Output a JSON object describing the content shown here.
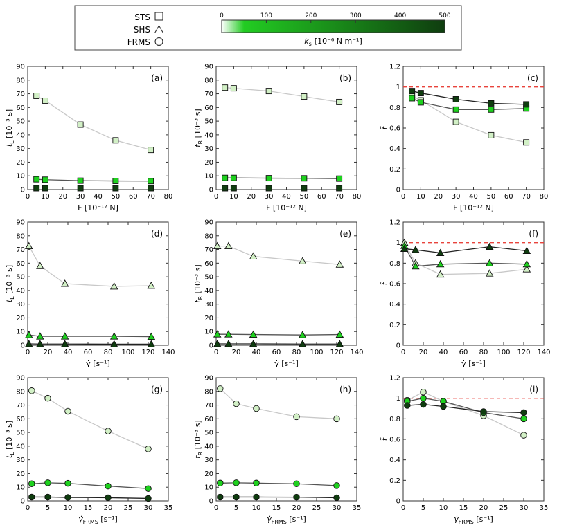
{
  "figure": {
    "legend": {
      "markers": [
        {
          "label": "STS",
          "shape": "square"
        },
        {
          "label": "SHS",
          "shape": "triangle"
        },
        {
          "label": "FRMS",
          "shape": "circle"
        }
      ],
      "colorbar": {
        "ticks": [
          "0",
          "100",
          "200",
          "300",
          "400",
          "500"
        ],
        "range": [
          0,
          500
        ],
        "label": "k",
        "label_sub": "s",
        "label_unit": "[10⁻⁶ N m⁻¹]",
        "colors": [
          "#ffffff",
          "#0f3d0f"
        ]
      }
    },
    "series_colors": {
      "low": {
        "fill": "#d2f0c6",
        "line": "#c8c8c8"
      },
      "mid": {
        "fill": "#1ed11e",
        "line": "#555555"
      },
      "high": {
        "fill": "#0f3d0f",
        "line": "#222222"
      }
    },
    "refline_color": "#e8443c"
  },
  "chart_data": [
    {
      "id": "a",
      "panel_label": "(a)",
      "type": "line",
      "marker": "square",
      "xlabel": "F [10⁻¹² N]",
      "ylabel": "t_L [10⁻³ s]",
      "xlim": [
        0,
        80
      ],
      "ylim": [
        0,
        90
      ],
      "xticks": [
        0,
        10,
        20,
        30,
        40,
        50,
        60,
        70,
        80
      ],
      "yticks": [
        0,
        10,
        20,
        30,
        40,
        50,
        60,
        70,
        80,
        90
      ],
      "x": [
        5,
        10,
        30,
        50,
        70
      ],
      "series": [
        {
          "level": "low",
          "values": [
            68.5,
            65,
            47.5,
            36,
            29
          ]
        },
        {
          "level": "mid",
          "values": [
            7.5,
            7.2,
            6.5,
            6.3,
            6.2
          ]
        },
        {
          "level": "high",
          "values": [
            1,
            1,
            1,
            1,
            1
          ]
        }
      ],
      "series_lines": [
        true,
        true,
        false
      ]
    },
    {
      "id": "b",
      "panel_label": "(b)",
      "type": "line",
      "marker": "square",
      "xlabel": "F [10⁻¹² N]",
      "ylabel": "t_R [10⁻³ s]",
      "xlim": [
        0,
        80
      ],
      "ylim": [
        0,
        90
      ],
      "xticks": [
        0,
        10,
        20,
        30,
        40,
        50,
        60,
        70,
        80
      ],
      "yticks": [
        0,
        10,
        20,
        30,
        40,
        50,
        60,
        70,
        80,
        90
      ],
      "x": [
        5,
        10,
        30,
        50,
        70
      ],
      "series": [
        {
          "level": "low",
          "values": [
            74.5,
            74,
            72,
            68,
            64
          ]
        },
        {
          "level": "mid",
          "values": [
            8.5,
            8.5,
            8.3,
            8.2,
            8
          ]
        },
        {
          "level": "high",
          "values": [
            1,
            1,
            1,
            1,
            1
          ]
        }
      ],
      "series_lines": [
        true,
        true,
        false
      ]
    },
    {
      "id": "c",
      "panel_label": "(c)",
      "type": "line",
      "marker": "square",
      "xlabel": "F [10⁻¹² N]",
      "ylabel": "t̃",
      "xlim": [
        0,
        80
      ],
      "ylim": [
        0,
        1.2
      ],
      "xticks": [
        0,
        10,
        20,
        30,
        40,
        50,
        60,
        70,
        80
      ],
      "yticks": [
        0,
        0.2,
        0.4,
        0.6,
        0.8,
        1,
        1.2
      ],
      "reference_line": 1,
      "x": [
        5,
        10,
        30,
        50,
        70
      ],
      "series": [
        {
          "level": "low",
          "values": [
            0.91,
            0.87,
            0.66,
            0.53,
            0.46
          ]
        },
        {
          "level": "mid",
          "values": [
            0.89,
            0.85,
            0.78,
            0.78,
            0.79
          ]
        },
        {
          "level": "high",
          "values": [
            0.96,
            0.94,
            0.88,
            0.84,
            0.83
          ]
        }
      ],
      "series_lines": [
        true,
        true,
        true
      ]
    },
    {
      "id": "d",
      "panel_label": "(d)",
      "type": "line",
      "marker": "triangle",
      "xlabel": "γ̇ [s⁻¹]",
      "ylabel": "t_L [10⁻³ s]",
      "xlim": [
        0,
        140
      ],
      "ylim": [
        0,
        90
      ],
      "xticks": [
        0,
        20,
        40,
        60,
        80,
        100,
        120,
        140
      ],
      "yticks": [
        0,
        10,
        20,
        30,
        40,
        50,
        60,
        70,
        80,
        90
      ],
      "x": [
        1.2,
        12.3,
        37,
        86,
        123
      ],
      "series": [
        {
          "level": "low",
          "values": [
            72.5,
            58,
            45,
            43,
            43.5
          ]
        },
        {
          "level": "mid",
          "values": [
            7.5,
            6.5,
            6.5,
            6.5,
            6.3
          ]
        },
        {
          "level": "high",
          "values": [
            1,
            0.9,
            0.9,
            0.8,
            0.8
          ]
        }
      ],
      "series_lines": [
        true,
        true,
        true
      ]
    },
    {
      "id": "e",
      "panel_label": "(e)",
      "type": "line",
      "marker": "triangle",
      "xlabel": "γ̇ [s⁻¹]",
      "ylabel": "t_R [10⁻³ s]",
      "xlim": [
        0,
        140
      ],
      "ylim": [
        0,
        90
      ],
      "xticks": [
        0,
        20,
        40,
        60,
        80,
        100,
        120,
        140
      ],
      "yticks": [
        0,
        10,
        20,
        30,
        40,
        50,
        60,
        70,
        80,
        90
      ],
      "x": [
        1.2,
        12.3,
        37,
        86,
        123
      ],
      "series": [
        {
          "level": "low",
          "values": [
            72.5,
            72.5,
            65,
            61.5,
            59
          ]
        },
        {
          "level": "mid",
          "values": [
            8,
            8,
            7.8,
            7.5,
            7.8
          ]
        },
        {
          "level": "high",
          "values": [
            1,
            1,
            1,
            0.9,
            0.9
          ]
        }
      ],
      "series_lines": [
        true,
        true,
        true
      ]
    },
    {
      "id": "f",
      "panel_label": "(f)",
      "type": "line",
      "marker": "triangle",
      "xlabel": "γ̇ [s⁻¹]",
      "ylabel": "t̃",
      "xlim": [
        0,
        140
      ],
      "ylim": [
        0,
        1.2
      ],
      "xticks": [
        0,
        20,
        40,
        60,
        80,
        100,
        120,
        140
      ],
      "yticks": [
        0,
        0.2,
        0.4,
        0.6,
        0.8,
        1,
        1.2
      ],
      "reference_line": 1,
      "x": [
        1.2,
        12.3,
        37,
        86,
        123
      ],
      "series": [
        {
          "level": "low",
          "values": [
            1,
            0.8,
            0.69,
            0.7,
            0.74
          ]
        },
        {
          "level": "mid",
          "values": [
            0.97,
            0.77,
            0.79,
            0.8,
            0.79
          ]
        },
        {
          "level": "high",
          "values": [
            0.94,
            0.93,
            0.9,
            0.96,
            0.92
          ]
        }
      ],
      "series_lines": [
        true,
        true,
        true
      ]
    },
    {
      "id": "g",
      "panel_label": "(g)",
      "type": "line",
      "marker": "circle",
      "xlabel": "γ̇_FRMS [s⁻¹]",
      "ylabel": "t_L [10⁻³ s]",
      "xlim": [
        0,
        35
      ],
      "ylim": [
        0,
        90
      ],
      "xticks": [
        0,
        5,
        10,
        15,
        20,
        25,
        30,
        35
      ],
      "yticks": [
        0,
        10,
        20,
        30,
        40,
        50,
        60,
        70,
        80,
        90
      ],
      "x": [
        1,
        5,
        10,
        20,
        30
      ],
      "series": [
        {
          "level": "low",
          "values": [
            80.5,
            75,
            65.5,
            51,
            38
          ]
        },
        {
          "level": "mid",
          "values": [
            12.5,
            13.2,
            12.8,
            10.8,
            9
          ]
        },
        {
          "level": "high",
          "values": [
            2.8,
            2.8,
            2.5,
            2.3,
            1.8
          ]
        }
      ],
      "series_lines": [
        true,
        true,
        true
      ]
    },
    {
      "id": "h",
      "panel_label": "(h)",
      "type": "line",
      "marker": "circle",
      "xlabel": "γ̇_FRMS [s⁻¹]",
      "ylabel": "t_R [10⁻³ s]",
      "xlim": [
        0,
        35
      ],
      "ylim": [
        0,
        90
      ],
      "xticks": [
        0,
        5,
        10,
        15,
        20,
        25,
        30,
        35
      ],
      "yticks": [
        0,
        10,
        20,
        30,
        40,
        50,
        60,
        70,
        80,
        90
      ],
      "x": [
        1,
        5,
        10,
        20,
        30
      ],
      "series": [
        {
          "level": "low",
          "values": [
            82,
            71,
            67.5,
            61.5,
            60
          ]
        },
        {
          "level": "mid",
          "values": [
            13,
            13.2,
            13,
            12.5,
            11.2
          ]
        },
        {
          "level": "high",
          "values": [
            2.8,
            2.8,
            2.8,
            2.7,
            2.3
          ]
        }
      ],
      "series_lines": [
        true,
        true,
        true
      ]
    },
    {
      "id": "i",
      "panel_label": "(i)",
      "type": "line",
      "marker": "circle",
      "xlabel": "γ̇_FRMS [s⁻¹]",
      "ylabel": "t̃",
      "xlim": [
        0,
        35
      ],
      "ylim": [
        0,
        1.2
      ],
      "xticks": [
        0,
        5,
        10,
        15,
        20,
        25,
        30,
        35
      ],
      "yticks": [
        0,
        0.2,
        0.4,
        0.6,
        0.8,
        1,
        1.2
      ],
      "reference_line": 1,
      "x": [
        1,
        5,
        10,
        20,
        30
      ],
      "series": [
        {
          "level": "low",
          "values": [
            0.98,
            1.06,
            0.97,
            0.83,
            0.64
          ]
        },
        {
          "level": "mid",
          "values": [
            0.97,
            1,
            0.97,
            0.86,
            0.8
          ]
        },
        {
          "level": "high",
          "values": [
            0.93,
            0.94,
            0.92,
            0.87,
            0.86
          ]
        }
      ],
      "series_lines": [
        true,
        true,
        true
      ]
    }
  ]
}
